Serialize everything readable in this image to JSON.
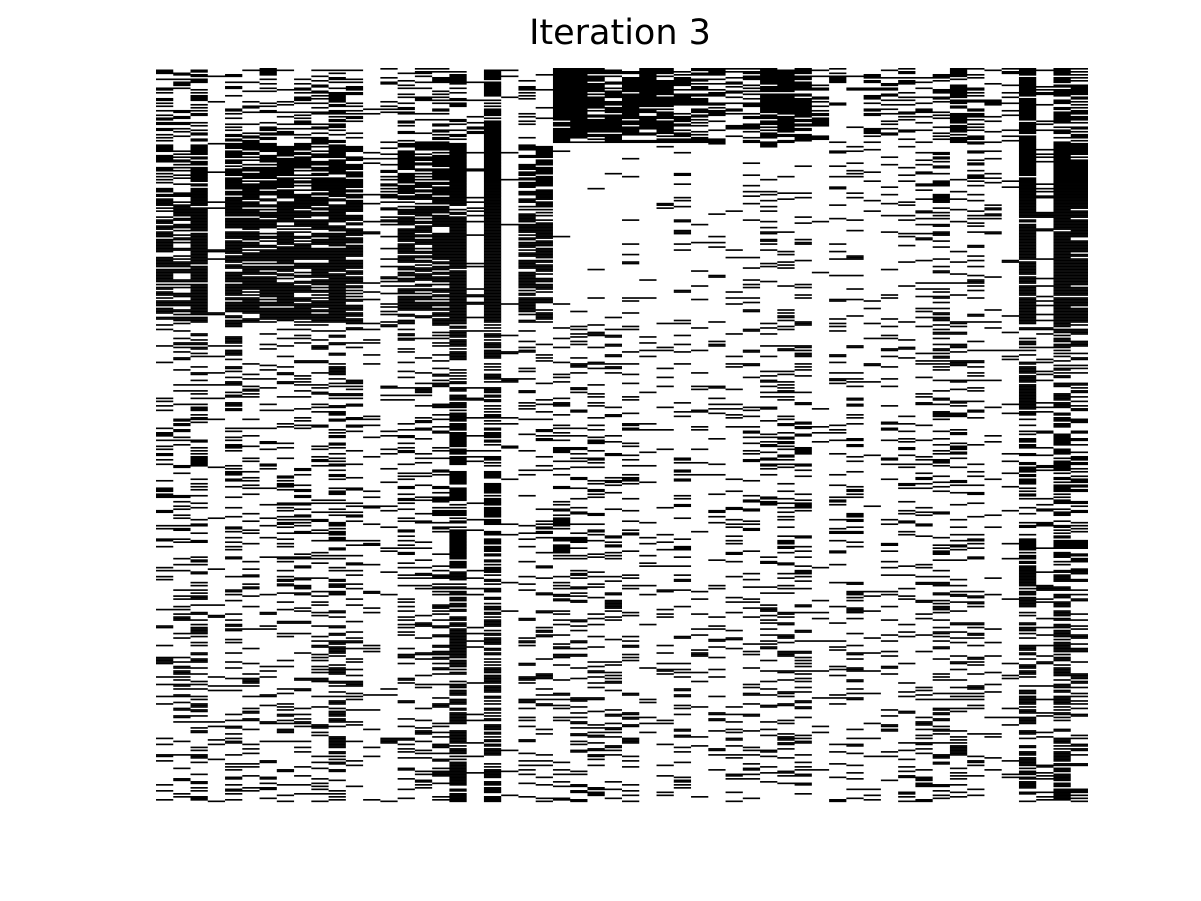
{
  "chart_data": {
    "type": "heatmap",
    "title": "Iteration 3",
    "subtitle": "",
    "xlabel": "",
    "ylabel": "",
    "xticks": [],
    "yticks": [],
    "grid": false,
    "legend": "none",
    "columns": 54,
    "rows": 490,
    "colors": {
      "present": "#000000",
      "absent": "#ffffff"
    },
    "row_blocks": [
      {
        "rows": [
          0,
          49
        ],
        "column_density": [
          0.55,
          0.3,
          0.45,
          0.05,
          0.4,
          0.3,
          0.35,
          0.3,
          0.35,
          0.3,
          0.55,
          0.3,
          0.1,
          0.2,
          0.3,
          0.25,
          0.45,
          0.65,
          0.1,
          0.75,
          0.05,
          0.2,
          0.05,
          0.95,
          0.95,
          0.8,
          0.7,
          0.85,
          0.7,
          0.75,
          0.6,
          0.65,
          0.45,
          0.4,
          0.55,
          0.75,
          0.85,
          0.85,
          0.3,
          0.35,
          0.2,
          0.35,
          0.3,
          0.35,
          0.3,
          0.3,
          0.75,
          0.35,
          0.2,
          0.3,
          0.95,
          0.25,
          0.7,
          0.65
        ]
      },
      {
        "rows": [
          50,
          169
        ],
        "column_density": [
          0.7,
          0.55,
          0.95,
          0.05,
          0.75,
          0.85,
          0.8,
          0.75,
          0.7,
          0.7,
          0.95,
          0.75,
          0.1,
          0.35,
          0.8,
          0.65,
          0.75,
          0.98,
          0.1,
          0.98,
          0.05,
          0.75,
          0.7,
          0.02,
          0.02,
          0.02,
          0.03,
          0.08,
          0.02,
          0.03,
          0.1,
          0.02,
          0.04,
          0.05,
          0.08,
          0.15,
          0.08,
          0.15,
          0.02,
          0.1,
          0.15,
          0.05,
          0.15,
          0.08,
          0.2,
          0.4,
          0.1,
          0.25,
          0.1,
          0.05,
          0.95,
          0.15,
          0.95,
          0.9
        ]
      },
      {
        "rows": [
          170,
          489
        ],
        "column_density": [
          0.2,
          0.25,
          0.35,
          0.05,
          0.25,
          0.2,
          0.15,
          0.2,
          0.18,
          0.25,
          0.4,
          0.2,
          0.08,
          0.1,
          0.25,
          0.2,
          0.3,
          0.75,
          0.1,
          0.6,
          0.05,
          0.15,
          0.18,
          0.25,
          0.25,
          0.22,
          0.18,
          0.15,
          0.1,
          0.1,
          0.2,
          0.08,
          0.12,
          0.15,
          0.2,
          0.22,
          0.25,
          0.25,
          0.05,
          0.15,
          0.2,
          0.05,
          0.12,
          0.15,
          0.18,
          0.3,
          0.28,
          0.18,
          0.05,
          0.1,
          0.55,
          0.15,
          0.6,
          0.35
        ]
      }
    ]
  }
}
